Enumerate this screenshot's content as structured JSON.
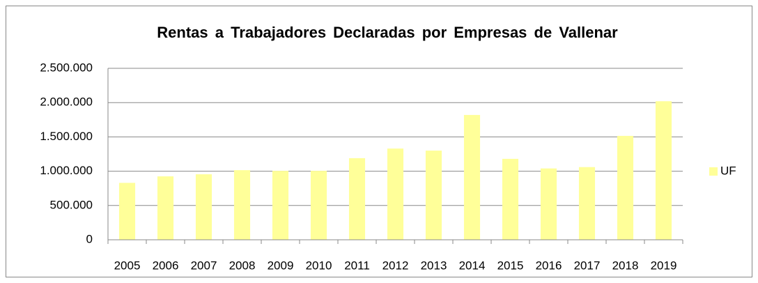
{
  "chart_data": {
    "type": "bar",
    "title": "Rentas a Trabajadores Declaradas por Empresas de Vallenar",
    "categories": [
      "2005",
      "2006",
      "2007",
      "2008",
      "2009",
      "2010",
      "2011",
      "2012",
      "2013",
      "2014",
      "2015",
      "2016",
      "2017",
      "2018",
      "2019"
    ],
    "series": [
      {
        "name": "UF",
        "color": "#ffff99",
        "values": [
          830000,
          925000,
          955000,
          1015000,
          1005000,
          1005000,
          1190000,
          1330000,
          1300000,
          1820000,
          1180000,
          1040000,
          1060000,
          1515000,
          2020000
        ]
      }
    ],
    "ylim": [
      0,
      2500000
    ],
    "yticks": [
      0,
      {
        "value": 500000,
        "label": "500.000"
      },
      {
        "value": 1000000,
        "label": "1.000.000"
      },
      {
        "value": 1500000,
        "label": "1.500.000"
      },
      {
        "value": 2000000,
        "label": "2.000.000"
      },
      {
        "value": 2500000,
        "label": "2.500.000"
      }
    ],
    "grid": true,
    "legend": "right"
  }
}
